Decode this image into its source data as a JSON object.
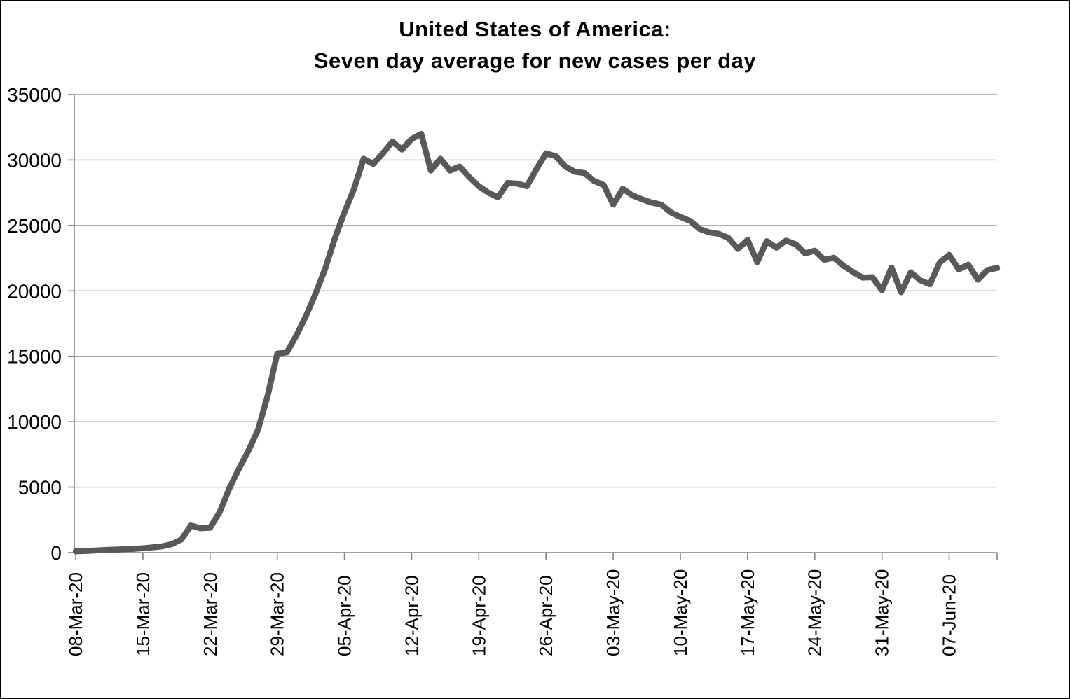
{
  "title": {
    "line1": "United States of America:",
    "line2": "Seven day average for new cases per day"
  },
  "colors": {
    "line": "#595959",
    "gridline": "#a6a6a6",
    "axis": "#808080",
    "text": "#000000",
    "background": "#ffffff",
    "border": "#000000"
  },
  "chart_data": {
    "type": "line",
    "title": "United States of America: Seven day average for new cases per day",
    "xlabel": "",
    "ylabel": "",
    "ylim": [
      0,
      35000
    ],
    "grid": "horizontal",
    "legend": "none",
    "y_axis_ticks": [
      0,
      5000,
      10000,
      15000,
      20000,
      25000,
      30000,
      35000
    ],
    "x_axis_tick_labels": [
      "08-Mar-20",
      "15-Mar-20",
      "22-Mar-20",
      "29-Mar-20",
      "05-Apr-20",
      "12-Apr-20",
      "19-Apr-20",
      "26-Apr-20",
      "03-May-20",
      "10-May-20",
      "17-May-20",
      "24-May-20",
      "31-May-20",
      "07-Jun-20"
    ],
    "x_tick_interval_days": 7,
    "series": [
      {
        "name": "Seven day average new cases per day",
        "dates": [
          "08-Mar-20",
          "09-Mar-20",
          "10-Mar-20",
          "11-Mar-20",
          "12-Mar-20",
          "13-Mar-20",
          "14-Mar-20",
          "15-Mar-20",
          "16-Mar-20",
          "17-Mar-20",
          "18-Mar-20",
          "19-Mar-20",
          "20-Mar-20",
          "21-Mar-20",
          "22-Mar-20",
          "23-Mar-20",
          "24-Mar-20",
          "25-Mar-20",
          "26-Mar-20",
          "27-Mar-20",
          "28-Mar-20",
          "29-Mar-20",
          "30-Mar-20",
          "31-Mar-20",
          "01-Apr-20",
          "02-Apr-20",
          "03-Apr-20",
          "04-Apr-20",
          "05-Apr-20",
          "06-Apr-20",
          "07-Apr-20",
          "08-Apr-20",
          "09-Apr-20",
          "10-Apr-20",
          "11-Apr-20",
          "12-Apr-20",
          "13-Apr-20",
          "14-Apr-20",
          "15-Apr-20",
          "16-Apr-20",
          "17-Apr-20",
          "18-Apr-20",
          "19-Apr-20",
          "20-Apr-20",
          "21-Apr-20",
          "22-Apr-20",
          "23-Apr-20",
          "24-Apr-20",
          "25-Apr-20",
          "26-Apr-20",
          "27-Apr-20",
          "28-Apr-20",
          "29-Apr-20",
          "30-Apr-20",
          "01-May-20",
          "02-May-20",
          "03-May-20",
          "04-May-20",
          "05-May-20",
          "06-May-20",
          "07-May-20",
          "08-May-20",
          "09-May-20",
          "10-May-20",
          "11-May-20",
          "12-May-20",
          "13-May-20",
          "14-May-20",
          "15-May-20",
          "16-May-20",
          "17-May-20",
          "18-May-20",
          "19-May-20",
          "20-May-20",
          "21-May-20",
          "22-May-20",
          "23-May-20",
          "24-May-20",
          "25-May-20",
          "26-May-20",
          "27-May-20",
          "28-May-20",
          "29-May-20",
          "30-May-20",
          "31-May-20",
          "01-Jun-20",
          "02-Jun-20",
          "03-Jun-20",
          "04-Jun-20",
          "05-Jun-20",
          "06-Jun-20",
          "07-Jun-20",
          "08-Jun-20",
          "09-Jun-20",
          "10-Jun-20",
          "11-Jun-20",
          "12-Jun-20"
        ],
        "values": [
          100,
          130,
          160,
          200,
          230,
          260,
          290,
          330,
          400,
          480,
          650,
          1000,
          2070,
          1870,
          1900,
          3100,
          4900,
          6400,
          7800,
          9400,
          12000,
          15200,
          15300,
          16600,
          18100,
          19800,
          21700,
          24000,
          26000,
          27800,
          30100,
          29700,
          30500,
          31400,
          30800,
          31600,
          32000,
          29200,
          30100,
          29200,
          29500,
          28700,
          28000,
          27500,
          27150,
          28250,
          28200,
          28000,
          29300,
          30500,
          30300,
          29500,
          29100,
          29000,
          28400,
          28100,
          26600,
          27800,
          27300,
          27000,
          26750,
          26600,
          26000,
          25650,
          25350,
          24730,
          24470,
          24360,
          24040,
          23200,
          23900,
          22200,
          23800,
          23300,
          23840,
          23570,
          22870,
          23070,
          22370,
          22530,
          21920,
          21440,
          21010,
          21050,
          20050,
          21780,
          19900,
          21420,
          20800,
          20500,
          22150,
          22750,
          21650,
          22000,
          20850,
          21600,
          21750
        ]
      }
    ]
  }
}
